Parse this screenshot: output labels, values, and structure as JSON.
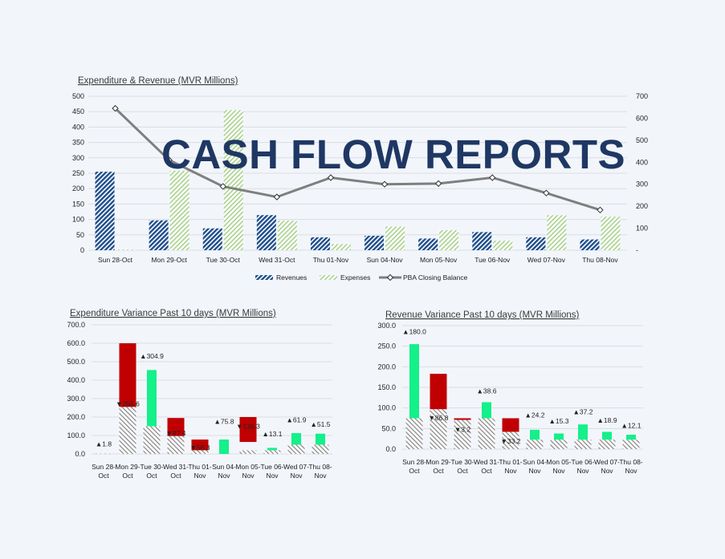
{
  "banner": "CASH FLOW REPORTS",
  "colors": {
    "revenues": "#1f4e8c",
    "expenses": "#a9d18e",
    "balance": "#7f7f7f",
    "increase": "#14f08a",
    "decrease": "#c00000",
    "base_hatch": "#8c8c8c"
  },
  "chart_data": [
    {
      "type": "bar",
      "title": "Expenditure & Revenue (MVR Millions)",
      "categories": [
        "Sun 28-Oct",
        "Mon 29-Oct",
        "Tue 30-Oct",
        "Wed 31-Oct",
        "Thu 01-Nov",
        "Sun 04-Nov",
        "Mon 05-Nov",
        "Tue 06-Nov",
        "Wed 07-Nov",
        "Thu 08-Nov"
      ],
      "series": [
        {
          "name": "Revenues",
          "axis": "left",
          "pattern": "dense-diagonal",
          "values": [
            255,
            97,
            71,
            114,
            42,
            47,
            38,
            59,
            42,
            35
          ]
        },
        {
          "name": "Expenses",
          "axis": "left",
          "pattern": "light-diagonal",
          "values": [
            2,
            258,
            455,
            96,
            20,
            77,
            65,
            31,
            114,
            109
          ]
        },
        {
          "name": "PBA Closing Balance",
          "type": "line",
          "axis": "right",
          "marker": "diamond",
          "values": [
            645,
            410,
            290,
            242,
            330,
            300,
            303,
            330,
            260,
            183
          ]
        }
      ],
      "yticks_left": [
        "0",
        "50",
        "100",
        "150",
        "200",
        "250",
        "300",
        "350",
        "400",
        "450",
        "500"
      ],
      "yticks_right": [
        "-",
        "100",
        "200",
        "300",
        "400",
        "500",
        "600",
        "700"
      ],
      "ylim_left": [
        0,
        500
      ],
      "ylim_right": [
        0,
        700
      ],
      "grid": true,
      "legend_position": "bottom"
    },
    {
      "type": "bar",
      "title": "Expenditure Variance Past 10 days (MVR Millions)",
      "categories": [
        "Sun 28-Oct",
        "Mon 29-Oct",
        "Tue 30-Oct",
        "Wed 31-Oct",
        "Thu 01-Nov",
        "Sun 04-Nov",
        "Mon 05-Nov",
        "Tue 06-Nov",
        "Wed 07-Nov",
        "Thu 08-Nov"
      ],
      "base": [
        2,
        300,
        150,
        97,
        20,
        0,
        20,
        20,
        50,
        50
      ],
      "change_bottom": [
        0,
        255,
        150,
        97,
        20,
        0,
        65,
        20,
        50,
        50
      ],
      "change_top": [
        0,
        600,
        455,
        195,
        78,
        78,
        200,
        33,
        113,
        110
      ],
      "direction": [
        "up",
        "down",
        "up",
        "down",
        "down",
        "up",
        "down",
        "up",
        "up",
        "up"
      ],
      "labels": [
        "1.8",
        "255.6",
        "304.9",
        "97.4",
        "58.3",
        "75.8",
        "136.3",
        "13.1",
        "61.9",
        "51.5"
      ],
      "label_y": [
        42,
        258,
        518,
        100,
        22,
        162,
        137,
        95,
        172,
        148
      ],
      "yticks": [
        "0.0",
        "100.0",
        "200.0",
        "300.0",
        "400.0",
        "500.0",
        "600.0",
        "700.0"
      ],
      "ylim": [
        0,
        700
      ],
      "grid": true
    },
    {
      "type": "bar",
      "title": "Revenue Variance Past 10 days (MVR Millions)",
      "categories": [
        "Sun 28-Oct",
        "Mon 29-Oct",
        "Tue 30-Oct",
        "Wed 31-Oct",
        "Thu 01-Nov",
        "Sun 04-Nov",
        "Mon 05-Nov",
        "Tue 06-Nov",
        "Wed 07-Nov",
        "Thu 08-Nov"
      ],
      "base": [
        75,
        97,
        71,
        75,
        42,
        23,
        23,
        23,
        23,
        23
      ],
      "change_bottom": [
        75,
        97,
        71,
        75,
        42,
        23,
        23,
        23,
        23,
        23
      ],
      "change_top": [
        255,
        183,
        75,
        114,
        75,
        47,
        38,
        60,
        42,
        35
      ],
      "direction": [
        "up",
        "down",
        "down",
        "up",
        "down",
        "up",
        "up",
        "up",
        "up",
        "up"
      ],
      "labels": [
        "180.0",
        "86.8",
        "3.2",
        "38.6",
        "33.2",
        "24.2",
        "15.3",
        "37.2",
        "18.9",
        "12.1"
      ],
      "label_y": [
        280,
        70,
        42,
        135,
        14,
        77,
        62,
        85,
        64,
        52
      ],
      "yticks": [
        "0.0",
        "50.0",
        "100.0",
        "150.0",
        "200.0",
        "250.0",
        "300.0"
      ],
      "ylim": [
        0,
        300
      ],
      "grid": true
    }
  ]
}
